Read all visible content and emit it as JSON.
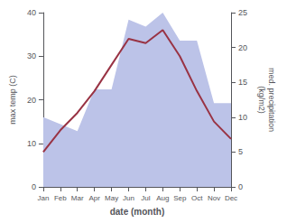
{
  "chart_data": {
    "type": "line",
    "categories": [
      "Jan",
      "Feb",
      "Mar",
      "Apr",
      "May",
      "Jun",
      "Jul",
      "Aug",
      "Sep",
      "Oct",
      "Nov",
      "Dec"
    ],
    "xlabel": "date (month)",
    "ylabel": "max temp (C)",
    "y2label": "med. precipitation\n(kg/m2)",
    "series": [
      {
        "type": "area",
        "axis": "y2",
        "color": "#bcc3e8",
        "values": [
          10,
          9,
          8,
          14,
          14,
          24,
          23,
          25,
          21,
          21,
          12,
          12
        ]
      },
      {
        "type": "line",
        "color": "#993344",
        "values": [
          8.0,
          13.0,
          17.0,
          22.0,
          28.0,
          34.0,
          33.0,
          36.0,
          30.0,
          22.0,
          15.0,
          11.0
        ]
      }
    ],
    "ylim": [
      0,
      40
    ],
    "yticks": [
      0,
      10,
      20,
      30,
      40
    ],
    "y2lim": [
      0,
      25
    ],
    "y2ticks": [
      0,
      5,
      10,
      15,
      20,
      25
    ],
    "grid": false
  }
}
